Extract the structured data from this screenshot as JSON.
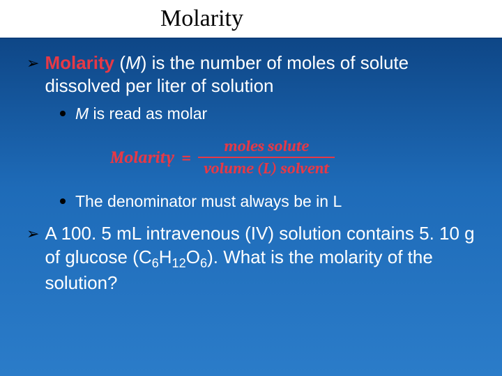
{
  "title": "Molarity",
  "bullet1": {
    "highlight": "Molarity",
    "symbol": "M",
    "rest": ") is the number of moles of solute dissolved per liter of solution"
  },
  "sub1": {
    "symbol": "M",
    "rest": " is read as molar"
  },
  "formula": {
    "label": "Molarity",
    "equals": "=",
    "numerator": "moles solute",
    "denominator": "volume (L) solvent"
  },
  "sub2": "The denominator must always be in L",
  "question": {
    "line1a": "A 100. 5 mL intravenous (IV) solution contains 5. 10 g of glucose (C",
    "sub1": "6",
    "mid1": "H",
    "sub2": "12",
    "mid2": "O",
    "sub3": "6",
    "line1b": ").  What is the molarity of the solution?"
  },
  "colors": {
    "bg_top": "#0a3d7a",
    "bg_bottom": "#2b7cc9",
    "title_bg": "#ffffff",
    "title_color": "#000000",
    "text_color": "#ffffff",
    "highlight_color": "#e63946",
    "bullet_color": "#000000"
  },
  "fonts": {
    "title_size": 34,
    "main_size": 26,
    "sub_size": 23,
    "formula_size": 24
  }
}
